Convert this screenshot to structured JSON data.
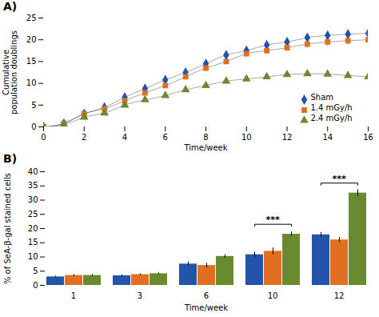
{
  "chart_data": [
    {
      "type": "line",
      "title": "A)",
      "xlabel": "Time/week",
      "ylabel": "Cumulative\npopulation doublings",
      "x": [
        0,
        1,
        2,
        3,
        4,
        5,
        6,
        7,
        8,
        9,
        10,
        11,
        12,
        13,
        14,
        15,
        16
      ],
      "series": [
        {
          "name": "Sham",
          "color": "#2255aa",
          "marker": "diamond",
          "values": [
            0,
            0.8,
            3.0,
            4.5,
            6.8,
            8.8,
            10.8,
            12.5,
            14.5,
            16.5,
            17.5,
            18.8,
            19.5,
            20.5,
            21.0,
            21.3,
            21.5
          ],
          "yerr": [
            0,
            0.15,
            0.2,
            0.2,
            0.3,
            0.3,
            0.3,
            0.4,
            0.4,
            0.5,
            0.5,
            0.5,
            0.6,
            0.6,
            0.7,
            0.7,
            0.8
          ]
        },
        {
          "name": "1.4 mGy/h",
          "color": "#e07020",
          "marker": "square",
          "values": [
            0,
            0.8,
            3.0,
            4.2,
            6.0,
            7.8,
            9.5,
            11.5,
            13.5,
            15.0,
            16.8,
            17.5,
            18.2,
            19.0,
            19.5,
            19.8,
            20.0
          ],
          "yerr": [
            0,
            0.15,
            0.2,
            0.2,
            0.3,
            0.4,
            0.5,
            0.5,
            0.6,
            0.6,
            0.7,
            0.7,
            0.8,
            0.9,
            1.0,
            1.0,
            1.1
          ]
        },
        {
          "name": "2.4 mGy/h",
          "color": "#6a8a30",
          "marker": "triangle",
          "values": [
            0,
            0.5,
            2.2,
            3.2,
            5.0,
            6.2,
            7.2,
            8.5,
            9.5,
            10.5,
            11.0,
            11.5,
            12.0,
            12.2,
            12.1,
            11.8,
            11.5
          ],
          "yerr": [
            0,
            0.15,
            0.2,
            0.2,
            0.3,
            0.3,
            0.3,
            0.4,
            0.4,
            0.4,
            0.4,
            0.4,
            0.5,
            0.4,
            0.4,
            0.4,
            0.5
          ]
        }
      ],
      "xlim": [
        0,
        16
      ],
      "xticks": [
        0,
        2,
        4,
        6,
        8,
        10,
        12,
        14,
        16
      ],
      "ylim": [
        0,
        25
      ],
      "yticks": [
        0,
        5,
        10,
        15,
        20,
        25
      ],
      "legend": "lower right"
    },
    {
      "type": "bar",
      "title": "B)",
      "xlabel": "Time/week",
      "ylabel": "% of SeA-β-gal stained cells",
      "categories": [
        1,
        3,
        6,
        10,
        12
      ],
      "series": [
        {
          "name": "Sham",
          "color": "#2255aa",
          "values": [
            3.0,
            3.4,
            7.5,
            10.8,
            17.8
          ],
          "yerr": [
            0.25,
            0.3,
            0.7,
            0.9,
            0.8
          ]
        },
        {
          "name": "1.4 mGy/h",
          "color": "#e07020",
          "values": [
            3.5,
            3.8,
            7.0,
            12.0,
            16.0
          ],
          "yerr": [
            0.3,
            0.3,
            0.8,
            1.2,
            0.9
          ]
        },
        {
          "name": "2.4 mGy/h",
          "color": "#6a8a30",
          "values": [
            3.5,
            4.1,
            10.2,
            18.0,
            32.5
          ],
          "yerr": [
            0.3,
            0.3,
            0.6,
            0.8,
            1.2
          ]
        }
      ],
      "ylim": [
        0,
        40
      ],
      "yticks": [
        0,
        5,
        10,
        15,
        20,
        25,
        30,
        35,
        40
      ],
      "annotations": [
        {
          "category": 10,
          "from": "Sham",
          "to": "2.4 mGy/h",
          "y": 21.5,
          "text": "***"
        },
        {
          "category": 12,
          "from": "Sham",
          "to": "2.4 mGy/h",
          "y": 36.0,
          "text": "***"
        }
      ]
    }
  ]
}
